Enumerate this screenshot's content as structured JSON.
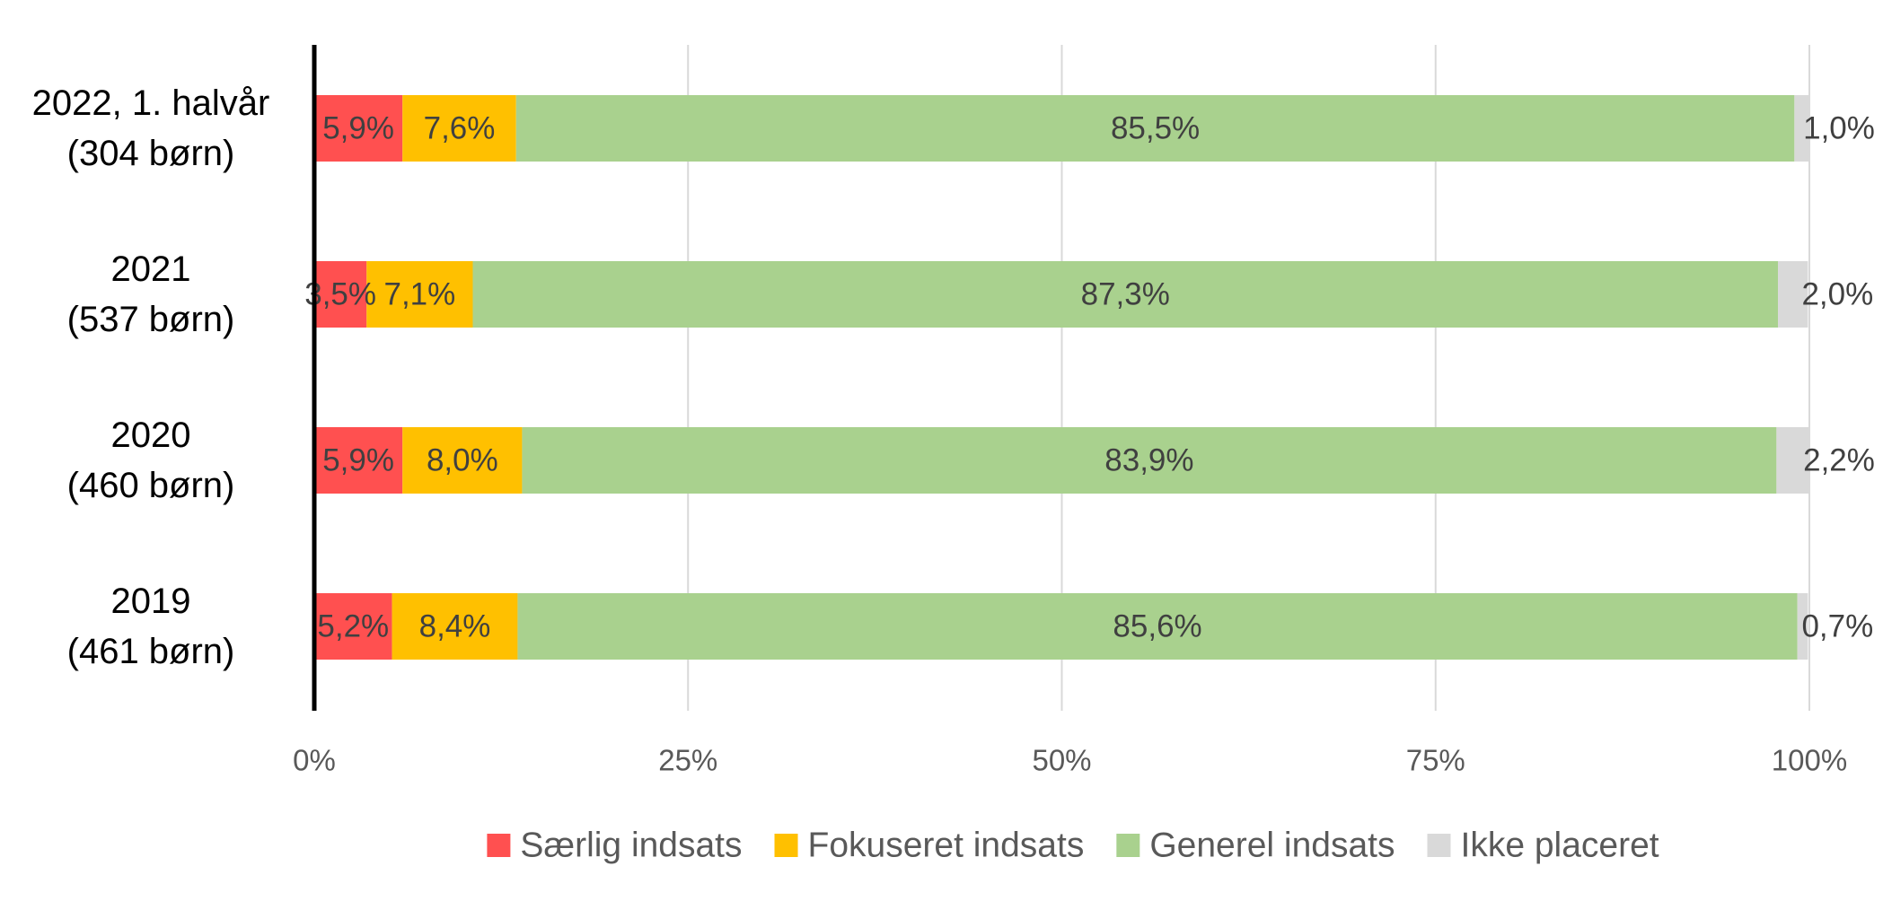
{
  "chart_data": {
    "type": "bar",
    "orientation": "horizontal",
    "stacked": "percent",
    "categories": [
      [
        "2022, 1. halvår",
        "(304 børn)"
      ],
      [
        "2021",
        "(537 børn)"
      ],
      [
        "2020",
        "(460 børn)"
      ],
      [
        "2019",
        "(461 børn)"
      ]
    ],
    "series": [
      {
        "name": "Særlig indsats",
        "color": "#FF5050",
        "values": [
          5.9,
          3.5,
          5.9,
          5.2
        ],
        "labels": [
          "5,9%",
          "3,5%",
          "5,9%",
          "5,2%"
        ]
      },
      {
        "name": "Fokuseret indsats",
        "color": "#FFC000",
        "values": [
          7.6,
          7.1,
          8.0,
          8.4
        ],
        "labels": [
          "7,6%",
          "7,1%",
          "8,0%",
          "8,4%"
        ]
      },
      {
        "name": "Generel indsats",
        "color": "#A9D18E",
        "values": [
          85.5,
          87.3,
          83.9,
          85.6
        ],
        "labels": [
          "85,5%",
          "87,3%",
          "83,9%",
          "85,6%"
        ]
      },
      {
        "name": "Ikke placeret",
        "color": "#D9D9D9",
        "values": [
          1.0,
          2.0,
          2.2,
          0.7
        ],
        "labels": [
          "1,0%",
          "2,0%",
          "2,2%",
          "0,7%"
        ]
      }
    ],
    "x_ticks": [
      0,
      25,
      50,
      75,
      100
    ],
    "x_tick_labels": [
      "0%",
      "25%",
      "50%",
      "75%",
      "100%"
    ],
    "xlim": [
      0,
      100
    ],
    "grid": true,
    "legend_position": "bottom"
  }
}
